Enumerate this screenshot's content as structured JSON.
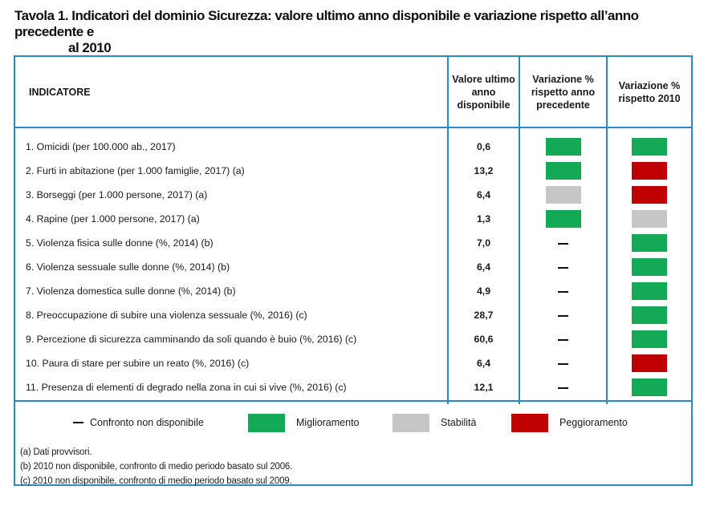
{
  "title": {
    "number": "Tavola 1.",
    "line1": "Indicatori del dominio Sicurezza: valore ultimo anno disponibile e variazione rispetto all’anno precedente e",
    "line2": "al 2010"
  },
  "columns": {
    "indicator": "INDICATORE",
    "value": "Valore ultimo anno disponibile",
    "prev_year": "Variazione % rispetto anno precedente",
    "vs2010": "Variazione % rispetto 2010"
  },
  "colors": {
    "improvement": "#13a956",
    "stability": "#c6c6c6",
    "worsening": "#c00000",
    "border": "#2d8ac0"
  },
  "rows": [
    {
      "name": "1. Omicidi (per 100.000 ab., 2017)",
      "value": "0,6",
      "prev": "improvement",
      "vs2010": "improvement"
    },
    {
      "name": "2. Furti in abitazione (per 1.000 famiglie, 2017) (a)",
      "value": "13,2",
      "prev": "improvement",
      "vs2010": "worsening"
    },
    {
      "name": "3. Borseggi (per 1.000 persone, 2017) (a)",
      "value": "6,4",
      "prev": "stability",
      "vs2010": "worsening"
    },
    {
      "name": "4. Rapine (per 1.000 persone, 2017) (a)",
      "value": "1,3",
      "prev": "improvement",
      "vs2010": "stability"
    },
    {
      "name": "5. Violenza fisica sulle donne  (%, 2014) (b)",
      "value": "7,0",
      "prev": "na",
      "vs2010": "improvement"
    },
    {
      "name": "6. Violenza sessuale sulle donne  (%, 2014) (b)",
      "value": "6,4",
      "prev": "na",
      "vs2010": "improvement"
    },
    {
      "name": "7. Violenza domestica sulle donne  (%, 2014) (b)",
      "value": "4,9",
      "prev": "na",
      "vs2010": "improvement"
    },
    {
      "name": "8. Preoccupazione di subire una violenza sessuale (%, 2016) (c)",
      "value": "28,7",
      "prev": "na",
      "vs2010": "improvement"
    },
    {
      "name": "9. Percezione di sicurezza camminando da soli quando è buio  (%, 2016)  (c)",
      "value": "60,6",
      "prev": "na",
      "vs2010": "improvement"
    },
    {
      "name": "10. Paura di stare per subire un reato (%, 2016) (c)",
      "value": "6,4",
      "prev": "na",
      "vs2010": "worsening"
    },
    {
      "name": "11. Presenza di elementi di degrado nella zona in cui si vive (%, 2016) (c)",
      "value": "12,1",
      "prev": "na",
      "vs2010": "improvement"
    }
  ],
  "legend": {
    "na": "Confronto non disponibile",
    "improvement": "Miglioramento",
    "stability": "Stabilità",
    "worsening": "Peggioramento"
  },
  "notes": [
    "(a) Dati provvisori.",
    "(b) 2010 non disponibile, confronto di medio periodo basato sul 2006.",
    "(c) 2010 non disponibile, confronto di medio periodo basato sul 2009."
  ]
}
